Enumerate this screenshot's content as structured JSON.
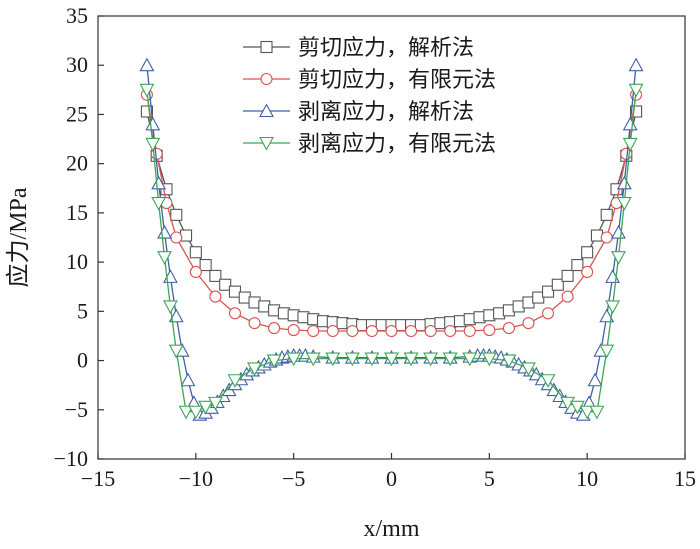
{
  "chart_data": {
    "type": "line",
    "xlabel": "x/mm",
    "ylabel": "应力/MPa",
    "xlim": [
      -15,
      15
    ],
    "ylim": [
      -10,
      35
    ],
    "xticks": [
      -15,
      -10,
      -5,
      0,
      5,
      10,
      15
    ],
    "yticks": [
      -10,
      -5,
      0,
      5,
      10,
      15,
      20,
      25,
      30,
      35
    ],
    "grid": false,
    "legend_position": "top-right",
    "series": [
      {
        "name": "剪切应力，解析法",
        "color": "#555555",
        "marker": "square",
        "x": [
          -12.5,
          -12.0,
          -11.5,
          -11.0,
          -10.5,
          -10.0,
          -9.5,
          -9.0,
          -8.5,
          -8.0,
          -7.5,
          -7.0,
          -6.5,
          -6.0,
          -5.5,
          -5.0,
          -4.5,
          -4.0,
          -3.5,
          -3.0,
          -2.5,
          -2.0,
          -1.5,
          -1.0,
          -0.5,
          0.0,
          0.5,
          1.0,
          1.5,
          2.0,
          2.5,
          3.0,
          3.5,
          4.0,
          4.5,
          5.0,
          5.5,
          6.0,
          6.5,
          7.0,
          7.5,
          8.0,
          8.5,
          9.0,
          9.5,
          10.0,
          10.5,
          11.0,
          11.5,
          12.0,
          12.5
        ],
        "y": [
          25.3,
          20.8,
          17.4,
          14.8,
          12.7,
          11.0,
          9.7,
          8.6,
          7.7,
          7.0,
          6.4,
          5.9,
          5.5,
          5.1,
          4.8,
          4.6,
          4.4,
          4.2,
          4.0,
          3.9,
          3.8,
          3.7,
          3.6,
          3.6,
          3.6,
          3.6,
          3.6,
          3.6,
          3.6,
          3.7,
          3.8,
          3.9,
          4.0,
          4.2,
          4.4,
          4.6,
          4.8,
          5.1,
          5.5,
          5.9,
          6.4,
          7.0,
          7.7,
          8.6,
          9.7,
          11.0,
          12.7,
          14.8,
          17.4,
          20.8,
          25.3
        ]
      },
      {
        "name": "剪切应力，有限元法",
        "color": "#d9534f",
        "marker": "circle",
        "x": [
          -12.5,
          -12.0,
          -11.5,
          -11.0,
          -10.0,
          -9.0,
          -8.0,
          -7.0,
          -6.0,
          -5.0,
          -4.0,
          -3.0,
          -2.0,
          -1.0,
          0.0,
          1.0,
          2.0,
          3.0,
          4.0,
          5.0,
          6.0,
          7.0,
          8.0,
          9.0,
          10.0,
          11.0,
          11.5,
          12.0,
          12.5
        ],
        "y": [
          27.0,
          21.0,
          16.0,
          12.5,
          9.0,
          6.5,
          4.8,
          3.8,
          3.3,
          3.1,
          3.0,
          3.0,
          3.0,
          3.0,
          3.0,
          3.0,
          3.0,
          3.0,
          3.0,
          3.1,
          3.3,
          3.8,
          4.8,
          6.5,
          9.0,
          12.5,
          16.0,
          21.0,
          27.0
        ]
      },
      {
        "name": "剥离应力，解析法",
        "color": "#3f5fa8",
        "marker": "triangle-up",
        "x": [
          -12.5,
          -12.2,
          -11.9,
          -11.6,
          -11.3,
          -11.0,
          -10.7,
          -10.4,
          -10.1,
          -9.8,
          -9.5,
          -9.2,
          -8.9,
          -8.6,
          -8.3,
          -8.0,
          -7.7,
          -7.4,
          -7.1,
          -6.8,
          -6.5,
          -6.2,
          -5.9,
          -5.6,
          -5.3,
          -5.0,
          -4.7,
          -4.4,
          -4.0,
          -3.0,
          -2.0,
          -1.0,
          0.0,
          1.0,
          2.0,
          3.0,
          4.0,
          4.4,
          4.7,
          5.0,
          5.3,
          5.6,
          5.9,
          6.2,
          6.5,
          6.8,
          7.1,
          7.4,
          7.7,
          8.0,
          8.3,
          8.6,
          8.9,
          9.2,
          9.5,
          9.8,
          10.1,
          10.4,
          10.7,
          11.0,
          11.3,
          11.6,
          11.9,
          12.2,
          12.5
        ],
        "y": [
          30.0,
          24.0,
          18.0,
          13.0,
          8.5,
          4.5,
          1.0,
          -2.0,
          -4.3,
          -5.5,
          -5.3,
          -4.8,
          -4.2,
          -3.6,
          -3.0,
          -2.4,
          -1.9,
          -1.4,
          -1.0,
          -0.7,
          -0.4,
          -0.1,
          0.1,
          0.3,
          0.4,
          0.5,
          0.5,
          0.5,
          0.4,
          0.3,
          0.3,
          0.3,
          0.3,
          0.3,
          0.3,
          0.3,
          0.4,
          0.5,
          0.5,
          0.5,
          0.4,
          0.3,
          0.1,
          -0.1,
          -0.4,
          -0.7,
          -1.0,
          -1.4,
          -1.9,
          -2.4,
          -3.0,
          -3.6,
          -4.2,
          -4.8,
          -5.3,
          -5.5,
          -4.3,
          -2.0,
          1.0,
          4.5,
          8.5,
          13.0,
          18.0,
          24.0,
          30.0
        ]
      },
      {
        "name": "剥离应力，有限元法",
        "color": "#3aa655",
        "marker": "triangle-down",
        "x": [
          -12.5,
          -12.2,
          -11.9,
          -11.6,
          -11.3,
          -11.0,
          -10.5,
          -10.0,
          -9.5,
          -9.0,
          -8.0,
          -7.0,
          -6.0,
          -5.0,
          -4.0,
          -3.0,
          -2.0,
          -1.0,
          0.0,
          1.0,
          2.0,
          3.0,
          4.0,
          5.0,
          6.0,
          7.0,
          8.0,
          9.0,
          9.5,
          10.0,
          10.5,
          11.0,
          11.3,
          11.6,
          11.9,
          12.2,
          12.5
        ],
        "y": [
          27.5,
          22.0,
          16.0,
          10.5,
          5.5,
          1.0,
          -5.2,
          -5.2,
          -4.7,
          -4.3,
          -2.0,
          -0.8,
          0.0,
          0.2,
          0.2,
          0.2,
          0.2,
          0.2,
          0.2,
          0.2,
          0.2,
          0.2,
          0.2,
          0.2,
          0.0,
          -0.8,
          -2.0,
          -4.3,
          -4.7,
          -5.2,
          -5.2,
          1.0,
          5.5,
          10.5,
          16.0,
          22.0,
          27.5
        ]
      }
    ]
  }
}
